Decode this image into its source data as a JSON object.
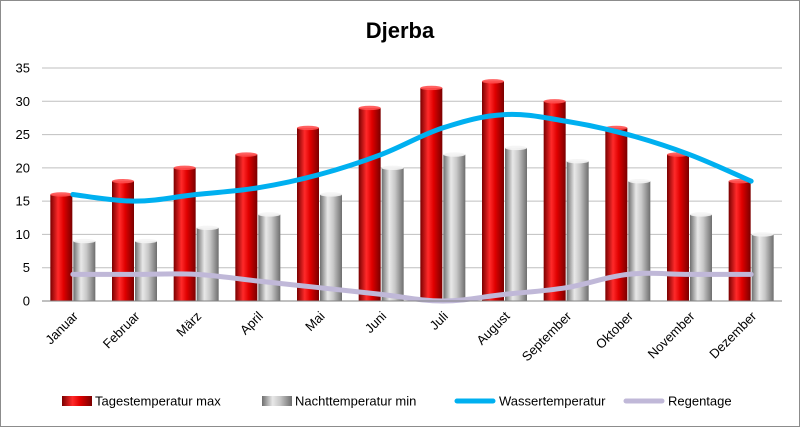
{
  "chart_data": {
    "type": "bar",
    "title": "Djerba",
    "categories": [
      "Januar",
      "Februar",
      "März",
      "April",
      "Mai",
      "Juni",
      "Juli",
      "August",
      "September",
      "Oktober",
      "November",
      "Dezember"
    ],
    "series": [
      {
        "name": "Tagestemperatur max",
        "kind": "bar",
        "color": "#cc0000",
        "values": [
          16,
          18,
          20,
          22,
          26,
          29,
          32,
          33,
          30,
          26,
          22,
          18
        ]
      },
      {
        "name": "Nachttemperatur min",
        "kind": "bar",
        "color": "#a6a6a6",
        "values": [
          9,
          9,
          11,
          13,
          16,
          20,
          22,
          23,
          21,
          18,
          13,
          10
        ]
      },
      {
        "name": "Wassertemperatur",
        "kind": "line",
        "color": "#00b0f0",
        "values": [
          16,
          15,
          16,
          17,
          19,
          22,
          26,
          28,
          27,
          25,
          22,
          18
        ]
      },
      {
        "name": "Regentage",
        "kind": "line",
        "color": "#c0b8d8",
        "values": [
          4,
          4,
          4,
          3,
          2,
          1,
          0,
          1,
          2,
          4,
          4,
          4
        ]
      }
    ],
    "ylim": [
      0,
      35
    ],
    "yticks": [
      0,
      5,
      10,
      15,
      20,
      25,
      30,
      35
    ],
    "grid": true,
    "legend": "bottom"
  }
}
